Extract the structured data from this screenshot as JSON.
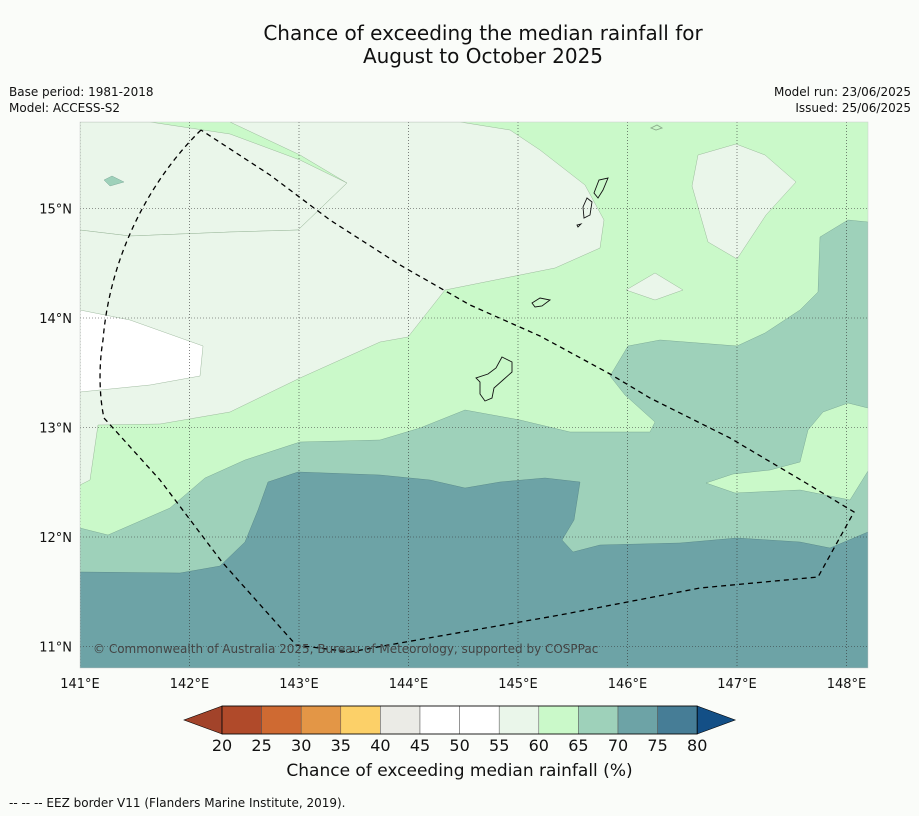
{
  "title_line1": "Chance of exceeding the median rainfall for",
  "title_line2": "August to October 2025",
  "meta_left": [
    "Base period: 1981-2018",
    "Model: ACCESS-S2"
  ],
  "meta_right": [
    "Model run: 23/06/2025",
    "Issued: 25/06/2025"
  ],
  "lat_ticks": [
    {
      "value": 15,
      "label": "15°N"
    },
    {
      "value": 14,
      "label": "14°N"
    },
    {
      "value": 13,
      "label": "13°N"
    },
    {
      "value": 12,
      "label": "12°N"
    },
    {
      "value": 11,
      "label": "11°N"
    }
  ],
  "lon_ticks": [
    {
      "value": 141,
      "label": "141°E"
    },
    {
      "value": 142,
      "label": "142°E"
    },
    {
      "value": 143,
      "label": "143°E"
    },
    {
      "value": 144,
      "label": "144°E"
    },
    {
      "value": 145,
      "label": "145°E"
    },
    {
      "value": 146,
      "label": "146°E"
    },
    {
      "value": 147,
      "label": "147°E"
    },
    {
      "value": 148,
      "label": "148°E"
    }
  ],
  "copyright": "© Commonwealth of Australia 2025, Bureau of Meteorology, supported by COSPPac",
  "colorbar": {
    "ticks": [
      "20",
      "25",
      "30",
      "35",
      "40",
      "45",
      "50",
      "55",
      "60",
      "65",
      "70",
      "75",
      "80"
    ],
    "colors": [
      "#b04a2a",
      "#cf6a32",
      "#e39646",
      "#fcd068",
      "#ebebe6",
      "#ffffff",
      "#ffffff",
      "#eaf6ea",
      "#caf9c9",
      "#9ed1ba",
      "#6da3a6",
      "#467d96"
    ],
    "under_color": "#a2432a",
    "over_color": "#134f86",
    "label": "Chance of exceeding median rainfall (%)"
  },
  "footnote": "--  --  -- EEZ border V11 (Flanders Marine Institute, 2019)."
}
